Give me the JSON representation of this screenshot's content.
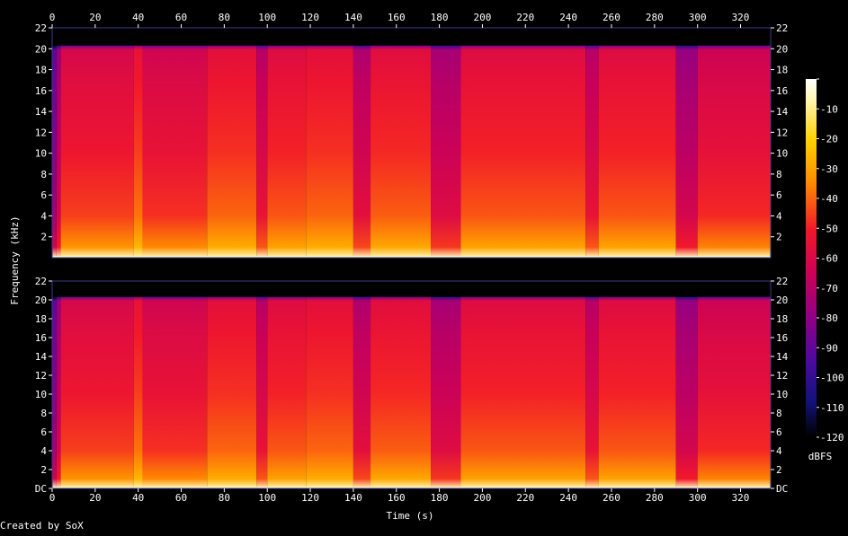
{
  "chart_data": {
    "type": "heatmap",
    "kind": "spectrogram",
    "x": {
      "label": "Time (s)",
      "unit": "s",
      "range": [
        0,
        334
      ],
      "ticks": [
        0,
        20,
        40,
        60,
        80,
        100,
        120,
        140,
        160,
        180,
        200,
        220,
        240,
        260,
        280,
        300,
        320
      ]
    },
    "y": {
      "label": "Frequency (kHz)",
      "unit": "kHz",
      "range": [
        0,
        22
      ],
      "ticks": [
        0,
        2,
        4,
        6,
        8,
        10,
        12,
        14,
        16,
        18,
        20,
        22
      ],
      "bottom_tick_label": "DC"
    },
    "channels": 2,
    "colorbar": {
      "label": "dBFS",
      "range": [
        -120,
        0
      ],
      "ticks": [
        0,
        -10,
        -20,
        -30,
        -40,
        -50,
        -60,
        -70,
        -80,
        -90,
        -100,
        -110,
        -120
      ],
      "tick_labels": [
        "",
        "-10",
        "-20",
        "-30",
        "-40",
        "-50",
        "-60",
        "-70",
        "-80",
        "-90",
        "-100",
        "-110",
        "-120"
      ]
    },
    "segments": [
      {
        "start": 0,
        "end": 2,
        "level_dbfs": -85
      },
      {
        "start": 2,
        "end": 4,
        "level_dbfs": -72
      },
      {
        "start": 4,
        "end": 38,
        "level_dbfs": -55
      },
      {
        "start": 38,
        "end": 42,
        "level_dbfs": -48
      },
      {
        "start": 42,
        "end": 72,
        "level_dbfs": -57
      },
      {
        "start": 72,
        "end": 95,
        "level_dbfs": -50
      },
      {
        "start": 95,
        "end": 100,
        "level_dbfs": -64
      },
      {
        "start": 100,
        "end": 118,
        "level_dbfs": -52
      },
      {
        "start": 118,
        "end": 140,
        "level_dbfs": -50
      },
      {
        "start": 140,
        "end": 148,
        "level_dbfs": -66
      },
      {
        "start": 148,
        "end": 176,
        "level_dbfs": -51
      },
      {
        "start": 176,
        "end": 190,
        "level_dbfs": -68
      },
      {
        "start": 190,
        "end": 248,
        "level_dbfs": -52
      },
      {
        "start": 248,
        "end": 254,
        "level_dbfs": -64
      },
      {
        "start": 254,
        "end": 290,
        "level_dbfs": -52
      },
      {
        "start": 290,
        "end": 300,
        "level_dbfs": -72
      },
      {
        "start": 300,
        "end": 334,
        "level_dbfs": -58
      }
    ],
    "max_content_frequency_khz": 20.3,
    "grid": false,
    "legend": "colorbar right"
  },
  "footer": {
    "credit": "Created by SoX"
  }
}
